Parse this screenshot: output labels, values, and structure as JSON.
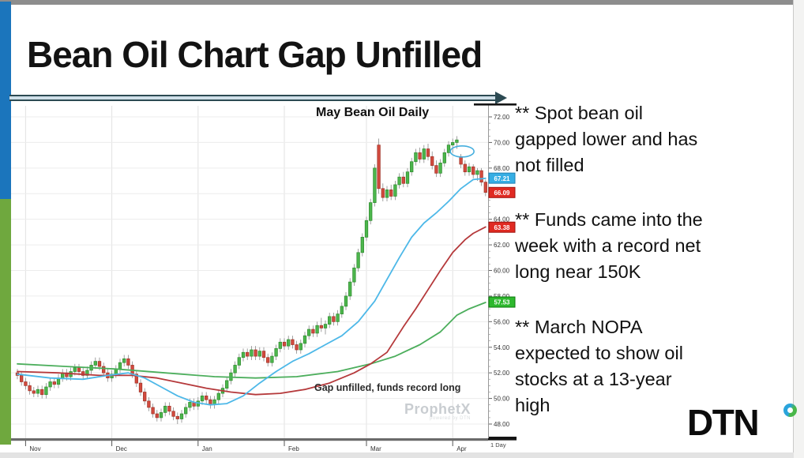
{
  "slide": {
    "title": "Bean Oil Chart Gap Unfilled",
    "bullets": [
      "** Spot bean oil\ngapped lower and has\nnot filled",
      "** Funds came into the\nweek with a record net\nlong near 150K",
      "** March NOPA\nexpected to show oil\nstocks at a 13-year\nhigh"
    ],
    "logo_text": "DTN"
  },
  "chart_data": {
    "type": "candlestick",
    "title": "May Bean Oil Daily",
    "annotation": "Gap unfilled, funds record long",
    "watermark": "ProphetX",
    "watermark_sub": "powered by DTN",
    "interval_label": "1 Day",
    "ylim": [
      47.5,
      72.9
    ],
    "grid": true,
    "y_ticks": [
      "72.00",
      "70.00",
      "68.00",
      "66.00",
      "64.00",
      "62.00",
      "60.00",
      "58.00",
      "56.00",
      "54.00",
      "52.00",
      "50.00",
      "48.00"
    ],
    "x_ticks": {
      "days": [
        2,
        23,
        44,
        65,
        85,
        106
      ],
      "labels": [
        "Nov",
        "Dec",
        "Jan",
        "Feb",
        "Mar",
        "Apr"
      ]
    },
    "price_badges": [
      {
        "value": "67.21",
        "color": "#36aee4",
        "border": "#1f82b5",
        "meaning": "fast-ma-last"
      },
      {
        "value": "66.09",
        "color": "#e02a22",
        "border": "#9e1410",
        "meaning": "last-price"
      },
      {
        "value": "63.38",
        "color": "#e02a22",
        "border": "#9e1410",
        "meaning": "mid-ma-last"
      },
      {
        "value": "57.53",
        "color": "#2eb82e",
        "border": "#0d7a0d",
        "meaning": "slow-ma-last"
      }
    ],
    "gap_ellipse": {
      "day": 108.3,
      "price": 69.3,
      "rx": 15,
      "ry": 7
    },
    "colors": {
      "up": "#4cb64c",
      "up_border": "#2e8b2e",
      "down": "#d24a3e",
      "down_border": "#a03327",
      "wick": "#8a8a8a",
      "grid": "#ececec",
      "vgrid": "#e2e2e2",
      "ma_fast": "#4db8e8",
      "ma_mid": "#b5393b",
      "ma_slow": "#4cae5c",
      "ellipse": "#45aede"
    },
    "candles": [
      [
        52.0,
        52.3,
        51.5,
        51.8
      ],
      [
        51.8,
        52.1,
        51.0,
        51.3
      ],
      [
        51.3,
        51.6,
        50.7,
        51.0
      ],
      [
        51.0,
        51.3,
        50.3,
        50.6
      ],
      [
        50.6,
        50.9,
        50.1,
        50.4
      ],
      [
        50.4,
        51.0,
        50.1,
        50.7
      ],
      [
        50.7,
        51.0,
        50.0,
        50.3
      ],
      [
        50.3,
        51.2,
        50.0,
        50.9
      ],
      [
        50.9,
        51.6,
        50.6,
        51.3
      ],
      [
        51.3,
        51.6,
        50.8,
        51.1
      ],
      [
        51.1,
        51.9,
        50.8,
        51.6
      ],
      [
        51.6,
        52.3,
        51.3,
        52.0
      ],
      [
        52.0,
        52.3,
        51.4,
        51.7
      ],
      [
        51.7,
        52.4,
        51.4,
        52.1
      ],
      [
        52.1,
        52.7,
        51.8,
        52.4
      ],
      [
        52.4,
        52.7,
        51.8,
        52.1
      ],
      [
        52.1,
        52.4,
        51.5,
        51.8
      ],
      [
        51.8,
        52.5,
        51.5,
        52.2
      ],
      [
        52.2,
        52.9,
        51.9,
        52.6
      ],
      [
        52.6,
        53.2,
        52.3,
        52.9
      ],
      [
        52.9,
        53.2,
        52.2,
        52.5
      ],
      [
        52.5,
        52.8,
        51.7,
        52.0
      ],
      [
        52.0,
        52.3,
        51.3,
        51.6
      ],
      [
        51.6,
        52.2,
        51.3,
        51.9
      ],
      [
        51.9,
        52.6,
        51.6,
        52.3
      ],
      [
        52.3,
        53.1,
        52.0,
        52.8
      ],
      [
        52.8,
        53.4,
        52.5,
        53.1
      ],
      [
        53.1,
        53.4,
        52.3,
        52.6
      ],
      [
        52.6,
        52.9,
        51.6,
        51.9
      ],
      [
        51.9,
        52.2,
        50.9,
        51.2
      ],
      [
        51.2,
        51.5,
        50.2,
        50.5
      ],
      [
        50.5,
        50.8,
        49.5,
        49.8
      ],
      [
        49.8,
        50.1,
        49.0,
        49.3
      ],
      [
        49.3,
        49.6,
        48.5,
        48.8
      ],
      [
        48.8,
        49.1,
        48.2,
        48.5
      ],
      [
        48.5,
        49.2,
        48.2,
        48.9
      ],
      [
        48.9,
        49.7,
        48.6,
        49.4
      ],
      [
        49.4,
        49.7,
        48.7,
        49.0
      ],
      [
        49.0,
        49.3,
        48.3,
        48.6
      ],
      [
        48.6,
        48.9,
        48.0,
        48.4
      ],
      [
        48.4,
        49.1,
        48.1,
        48.8
      ],
      [
        48.8,
        49.6,
        48.5,
        49.3
      ],
      [
        49.3,
        50.0,
        49.0,
        49.7
      ],
      [
        49.7,
        50.0,
        49.1,
        49.4
      ],
      [
        49.4,
        50.1,
        49.1,
        49.8
      ],
      [
        49.8,
        50.5,
        49.5,
        50.2
      ],
      [
        50.2,
        50.5,
        49.6,
        49.9
      ],
      [
        49.9,
        50.2,
        49.2,
        49.5
      ],
      [
        49.5,
        50.2,
        49.2,
        49.9
      ],
      [
        49.9,
        50.7,
        49.6,
        50.4
      ],
      [
        50.4,
        51.1,
        50.1,
        50.8
      ],
      [
        50.8,
        51.7,
        50.5,
        51.4
      ],
      [
        51.4,
        52.3,
        51.1,
        52.0
      ],
      [
        52.0,
        52.9,
        51.7,
        52.6
      ],
      [
        52.6,
        53.5,
        52.3,
        53.2
      ],
      [
        53.2,
        53.9,
        52.9,
        53.6
      ],
      [
        53.6,
        53.9,
        53.0,
        53.3
      ],
      [
        53.3,
        54.1,
        53.0,
        53.8
      ],
      [
        53.8,
        54.1,
        53.0,
        53.3
      ],
      [
        53.3,
        54.0,
        53.0,
        53.7
      ],
      [
        53.7,
        54.0,
        52.9,
        53.2
      ],
      [
        53.2,
        53.5,
        52.5,
        52.8
      ],
      [
        52.8,
        53.6,
        52.5,
        53.3
      ],
      [
        53.3,
        54.2,
        53.0,
        53.9
      ],
      [
        53.9,
        54.7,
        53.6,
        54.4
      ],
      [
        54.4,
        54.7,
        53.8,
        54.1
      ],
      [
        54.1,
        54.9,
        53.8,
        54.6
      ],
      [
        54.6,
        54.9,
        53.9,
        54.2
      ],
      [
        54.2,
        54.5,
        53.5,
        53.8
      ],
      [
        53.8,
        54.6,
        53.5,
        54.3
      ],
      [
        54.3,
        55.2,
        54.0,
        54.9
      ],
      [
        54.9,
        55.7,
        54.6,
        55.4
      ],
      [
        55.4,
        55.7,
        54.8,
        55.1
      ],
      [
        55.1,
        56.0,
        54.8,
        55.7
      ],
      [
        55.7,
        56.3,
        55.2,
        55.5
      ],
      [
        55.5,
        56.1,
        55.0,
        55.8
      ],
      [
        55.8,
        56.7,
        55.5,
        56.4
      ],
      [
        56.4,
        56.7,
        55.7,
        56.0
      ],
      [
        56.0,
        56.9,
        55.7,
        56.6
      ],
      [
        56.6,
        57.5,
        56.3,
        57.2
      ],
      [
        57.2,
        58.3,
        56.9,
        58.0
      ],
      [
        58.0,
        59.4,
        57.7,
        59.1
      ],
      [
        59.1,
        60.5,
        58.8,
        60.2
      ],
      [
        60.2,
        61.7,
        59.9,
        61.4
      ],
      [
        61.4,
        62.9,
        61.1,
        62.6
      ],
      [
        62.6,
        64.2,
        62.3,
        63.9
      ],
      [
        63.9,
        65.6,
        63.6,
        65.3
      ],
      [
        65.3,
        68.3,
        65.0,
        68.0
      ],
      [
        69.8,
        70.3,
        66.0,
        66.4
      ],
      [
        66.4,
        66.8,
        65.4,
        65.7
      ],
      [
        65.7,
        66.6,
        65.4,
        66.3
      ],
      [
        66.3,
        66.7,
        65.5,
        65.8
      ],
      [
        65.8,
        67.0,
        65.5,
        66.7
      ],
      [
        66.7,
        67.6,
        66.4,
        67.3
      ],
      [
        67.3,
        67.7,
        66.5,
        66.8
      ],
      [
        66.8,
        68.0,
        66.5,
        67.7
      ],
      [
        67.7,
        68.8,
        67.4,
        68.5
      ],
      [
        68.5,
        69.5,
        68.2,
        69.2
      ],
      [
        69.2,
        69.6,
        68.4,
        68.7
      ],
      [
        68.7,
        69.8,
        68.4,
        69.5
      ],
      [
        69.5,
        69.9,
        68.6,
        68.9
      ],
      [
        68.9,
        69.3,
        67.9,
        68.2
      ],
      [
        68.2,
        68.6,
        67.3,
        67.6
      ],
      [
        67.6,
        68.7,
        67.3,
        68.4
      ],
      [
        68.4,
        69.5,
        68.1,
        69.2
      ],
      [
        69.2,
        70.1,
        68.9,
        69.8
      ],
      [
        69.8,
        70.3,
        69.2,
        70.0
      ],
      [
        70.0,
        70.5,
        69.5,
        70.2
      ],
      [
        68.9,
        69.1,
        68.0,
        68.3
      ],
      [
        68.3,
        68.6,
        67.4,
        67.7
      ],
      [
        67.7,
        68.4,
        67.4,
        68.1
      ],
      [
        68.1,
        68.3,
        67.2,
        67.5
      ],
      [
        67.5,
        68.0,
        67.0,
        67.8
      ],
      [
        67.8,
        68.0,
        66.6,
        66.9
      ],
      [
        66.9,
        67.1,
        65.8,
        66.1
      ]
    ],
    "ma_lines": [
      {
        "name": "ma-slow",
        "color": "#4cae5c",
        "points": [
          [
            0,
            52.7
          ],
          [
            12,
            52.5
          ],
          [
            24,
            52.3
          ],
          [
            36,
            52.0
          ],
          [
            48,
            51.7
          ],
          [
            58,
            51.6
          ],
          [
            68,
            51.7
          ],
          [
            78,
            52.1
          ],
          [
            86,
            52.7
          ],
          [
            92,
            53.3
          ],
          [
            98,
            54.2
          ],
          [
            103,
            55.2
          ],
          [
            107,
            56.5
          ],
          [
            110,
            57.0
          ],
          [
            114,
            57.5
          ]
        ]
      },
      {
        "name": "ma-mid",
        "color": "#b5393b",
        "points": [
          [
            0,
            52.1
          ],
          [
            10,
            52.0
          ],
          [
            20,
            51.8
          ],
          [
            28,
            51.8
          ],
          [
            34,
            51.6
          ],
          [
            40,
            51.2
          ],
          [
            46,
            50.8
          ],
          [
            52,
            50.5
          ],
          [
            58,
            50.3
          ],
          [
            64,
            50.4
          ],
          [
            70,
            50.7
          ],
          [
            76,
            51.2
          ],
          [
            82,
            52.0
          ],
          [
            86,
            52.7
          ],
          [
            90,
            53.6
          ],
          [
            94,
            55.6
          ],
          [
            97,
            57.0
          ],
          [
            100,
            58.5
          ],
          [
            103,
            60.0
          ],
          [
            106,
            61.4
          ],
          [
            109,
            62.4
          ],
          [
            111,
            62.9
          ],
          [
            114,
            63.4
          ]
        ]
      },
      {
        "name": "ma-fast",
        "color": "#4db8e8",
        "points": [
          [
            0,
            51.9
          ],
          [
            8,
            51.6
          ],
          [
            16,
            51.5
          ],
          [
            22,
            51.8
          ],
          [
            27,
            52.0
          ],
          [
            31,
            51.6
          ],
          [
            35,
            50.9
          ],
          [
            39,
            50.2
          ],
          [
            43,
            49.7
          ],
          [
            47,
            49.5
          ],
          [
            51,
            49.6
          ],
          [
            55,
            50.2
          ],
          [
            59,
            51.2
          ],
          [
            63,
            52.1
          ],
          [
            67,
            52.9
          ],
          [
            71,
            53.5
          ],
          [
            75,
            54.2
          ],
          [
            79,
            54.9
          ],
          [
            83,
            56.0
          ],
          [
            87,
            57.6
          ],
          [
            90,
            59.3
          ],
          [
            93,
            61.0
          ],
          [
            96,
            62.6
          ],
          [
            99,
            63.7
          ],
          [
            102,
            64.5
          ],
          [
            105,
            65.4
          ],
          [
            108,
            66.4
          ],
          [
            111,
            67.1
          ],
          [
            114,
            67.2
          ]
        ]
      }
    ]
  }
}
